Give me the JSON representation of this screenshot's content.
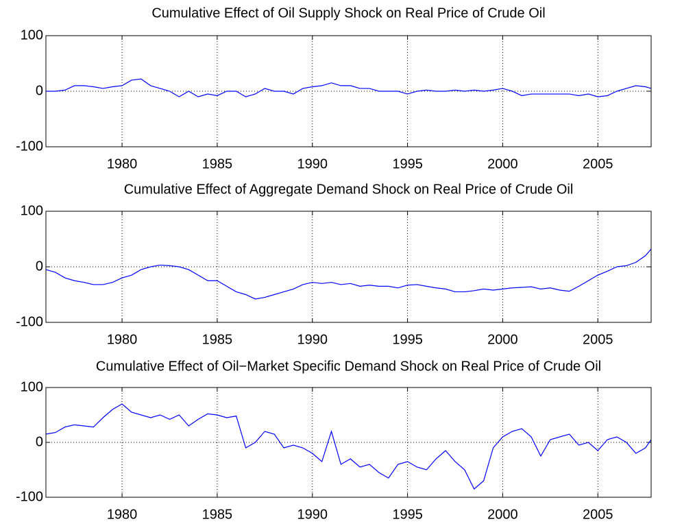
{
  "chart_data": [
    {
      "type": "line",
      "title": "Cumulative Effect of Oil Supply Shock on Real Price of Crude Oil",
      "x": [
        1976,
        1976.5,
        1977,
        1977.5,
        1978,
        1978.5,
        1979,
        1979.5,
        1980,
        1980.5,
        1981,
        1981.5,
        1982,
        1982.5,
        1983,
        1983.5,
        1984,
        1984.5,
        1985,
        1985.5,
        1986,
        1986.5,
        1987,
        1987.5,
        1988,
        1988.5,
        1989,
        1989.5,
        1990,
        1990.5,
        1991,
        1991.5,
        1992,
        1992.5,
        1993,
        1993.5,
        1994,
        1994.5,
        1995,
        1995.5,
        1996,
        1996.5,
        1997,
        1997.5,
        1998,
        1998.5,
        1999,
        1999.5,
        2000,
        2000.5,
        2001,
        2001.5,
        2002,
        2002.5,
        2003,
        2003.5,
        2004,
        2004.5,
        2005,
        2005.5,
        2006,
        2006.5,
        2007,
        2007.5,
        2007.8
      ],
      "series": [
        {
          "color": "#0000ff",
          "values": [
            0,
            0,
            2,
            10,
            10,
            8,
            5,
            8,
            10,
            20,
            22,
            10,
            5,
            0,
            -10,
            0,
            -10,
            -5,
            -8,
            0,
            0,
            -10,
            -5,
            5,
            0,
            0,
            -5,
            5,
            8,
            10,
            15,
            10,
            10,
            5,
            5,
            0,
            0,
            0,
            -5,
            0,
            2,
            0,
            0,
            2,
            0,
            2,
            0,
            2,
            5,
            0,
            -8,
            -5,
            -5,
            -5,
            -5,
            -5,
            -8,
            -5,
            -10,
            -8,
            0,
            5,
            10,
            8,
            5
          ]
        }
      ],
      "xlim": [
        1976,
        2007.8
      ],
      "ylim": [
        -100,
        100
      ],
      "xticks": [
        1980,
        1985,
        1990,
        1995,
        2000,
        2005
      ],
      "yticks": [
        -100,
        0,
        100
      ],
      "grid": true
    },
    {
      "type": "line",
      "title": "Cumulative Effect of Aggregate Demand Shock on Real Price of Crude Oil",
      "x": [
        1976,
        1976.5,
        1977,
        1977.5,
        1978,
        1978.5,
        1979,
        1979.5,
        1980,
        1980.5,
        1981,
        1981.5,
        1982,
        1982.5,
        1983,
        1983.5,
        1984,
        1984.5,
        1985,
        1985.5,
        1986,
        1986.5,
        1987,
        1987.5,
        1988,
        1988.5,
        1989,
        1989.5,
        1990,
        1990.5,
        1991,
        1991.5,
        1992,
        1992.5,
        1993,
        1993.5,
        1994,
        1994.5,
        1995,
        1995.5,
        1996,
        1996.5,
        1997,
        1997.5,
        1998,
        1998.5,
        1999,
        1999.5,
        2000,
        2000.5,
        2001,
        2001.5,
        2002,
        2002.5,
        2003,
        2003.5,
        2004,
        2004.5,
        2005,
        2005.5,
        2006,
        2006.5,
        2007,
        2007.5,
        2007.8
      ],
      "series": [
        {
          "color": "#0000ff",
          "values": [
            -5,
            -10,
            -20,
            -25,
            -28,
            -32,
            -32,
            -28,
            -20,
            -15,
            -5,
            0,
            3,
            2,
            0,
            -5,
            -15,
            -25,
            -25,
            -35,
            -45,
            -50,
            -58,
            -55,
            -50,
            -45,
            -40,
            -32,
            -28,
            -30,
            -28,
            -32,
            -30,
            -35,
            -33,
            -35,
            -35,
            -38,
            -33,
            -32,
            -35,
            -38,
            -40,
            -45,
            -45,
            -43,
            -40,
            -42,
            -40,
            -38,
            -37,
            -36,
            -40,
            -38,
            -42,
            -44,
            -35,
            -25,
            -15,
            -8,
            0,
            2,
            8,
            20,
            32
          ]
        }
      ],
      "xlim": [
        1976,
        2007.8
      ],
      "ylim": [
        -100,
        100
      ],
      "xticks": [
        1980,
        1985,
        1990,
        1995,
        2000,
        2005
      ],
      "yticks": [
        -100,
        0,
        100
      ],
      "grid": true
    },
    {
      "type": "line",
      "title": "Cumulative Effect of Oil−Market Specific Demand Shock on Real Price of Crude Oil",
      "x": [
        1976,
        1976.5,
        1977,
        1977.5,
        1978,
        1978.5,
        1979,
        1979.5,
        1980,
        1980.5,
        1981,
        1981.5,
        1982,
        1982.5,
        1983,
        1983.5,
        1984,
        1984.5,
        1985,
        1985.5,
        1986,
        1986.5,
        1987,
        1987.5,
        1988,
        1988.5,
        1989,
        1989.5,
        1990,
        1990.5,
        1991,
        1991.5,
        1992,
        1992.5,
        1993,
        1993.5,
        1994,
        1994.5,
        1995,
        1995.5,
        1996,
        1996.5,
        1997,
        1997.5,
        1998,
        1998.5,
        1999,
        1999.5,
        2000,
        2000.5,
        2001,
        2001.5,
        2002,
        2002.5,
        2003,
        2003.5,
        2004,
        2004.5,
        2005,
        2005.5,
        2006,
        2006.5,
        2007,
        2007.5,
        2007.8
      ],
      "series": [
        {
          "color": "#0000ff",
          "values": [
            15,
            18,
            28,
            32,
            30,
            28,
            45,
            60,
            70,
            55,
            50,
            45,
            50,
            42,
            50,
            30,
            42,
            52,
            50,
            45,
            48,
            -10,
            0,
            20,
            15,
            -10,
            -5,
            -10,
            -20,
            -35,
            20,
            -40,
            -30,
            -45,
            -40,
            -55,
            -65,
            -40,
            -35,
            -45,
            -50,
            -30,
            -15,
            -35,
            -50,
            -85,
            -70,
            -10,
            10,
            20,
            25,
            10,
            -25,
            5,
            10,
            15,
            -5,
            0,
            -15,
            5,
            10,
            0,
            -20,
            -10,
            5
          ]
        }
      ],
      "xlim": [
        1976,
        2007.8
      ],
      "ylim": [
        -100,
        100
      ],
      "xticks": [
        1980,
        1985,
        1990,
        1995,
        2000,
        2005
      ],
      "yticks": [
        -100,
        0,
        100
      ],
      "grid": true
    }
  ]
}
